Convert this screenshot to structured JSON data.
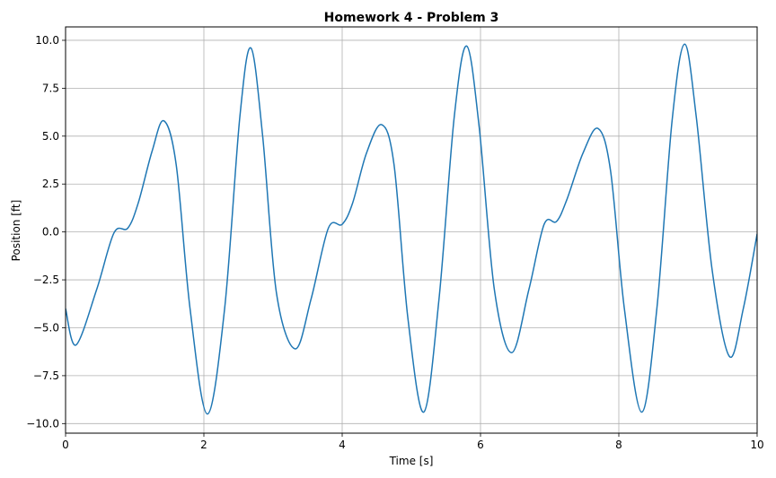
{
  "chart_data": {
    "type": "line",
    "title": "Homework 4 - Problem 3",
    "xlabel": "Time [s]",
    "ylabel": "Position [ft]",
    "xlim": [
      0,
      10
    ],
    "ylim": [
      -10.5,
      10.7
    ],
    "x_ticks": [
      0,
      2,
      4,
      6,
      8,
      10
    ],
    "x_tick_labels": [
      "0",
      "2",
      "4",
      "6",
      "8",
      "10"
    ],
    "y_ticks": [
      -10,
      -7.5,
      -5,
      -2.5,
      0,
      2.5,
      5,
      7.5,
      10
    ],
    "y_tick_labels": [
      "−10.0",
      "−7.5",
      "−5.0",
      "−2.5",
      "0.0",
      "2.5",
      "5.0",
      "7.5",
      "10.0"
    ],
    "grid": true,
    "series": [
      {
        "color": "#1f77b4",
        "x": [
          0,
          0.15,
          0.45,
          0.7,
          0.9,
          1.05,
          1.25,
          1.42,
          1.6,
          1.8,
          2.05,
          2.3,
          2.52,
          2.68,
          2.85,
          3.05,
          3.32,
          3.55,
          3.8,
          4.0,
          4.15,
          4.35,
          4.57,
          4.75,
          4.95,
          5.18,
          5.4,
          5.62,
          5.8,
          5.98,
          6.2,
          6.45,
          6.7,
          6.92,
          7.1,
          7.25,
          7.48,
          7.7,
          7.88,
          8.08,
          8.33,
          8.55,
          8.77,
          8.95,
          9.12,
          9.35,
          9.6,
          9.8,
          10.0
        ],
        "y": [
          -4.0,
          -5.9,
          -3.0,
          -0.05,
          0.2,
          1.5,
          4.2,
          5.8,
          3.5,
          -4.0,
          -9.5,
          -4.0,
          6.0,
          9.6,
          5.0,
          -3.2,
          -6.1,
          -3.5,
          0.2,
          0.4,
          1.5,
          4.1,
          5.6,
          3.5,
          -4.5,
          -9.4,
          -3.5,
          6.0,
          9.7,
          5.5,
          -3.0,
          -6.3,
          -3.0,
          0.4,
          0.55,
          1.7,
          4.1,
          5.4,
          3.2,
          -4.0,
          -9.4,
          -4.0,
          5.8,
          9.8,
          6.0,
          -2.0,
          -6.5,
          -4.0,
          -0.1
        ]
      }
    ]
  }
}
